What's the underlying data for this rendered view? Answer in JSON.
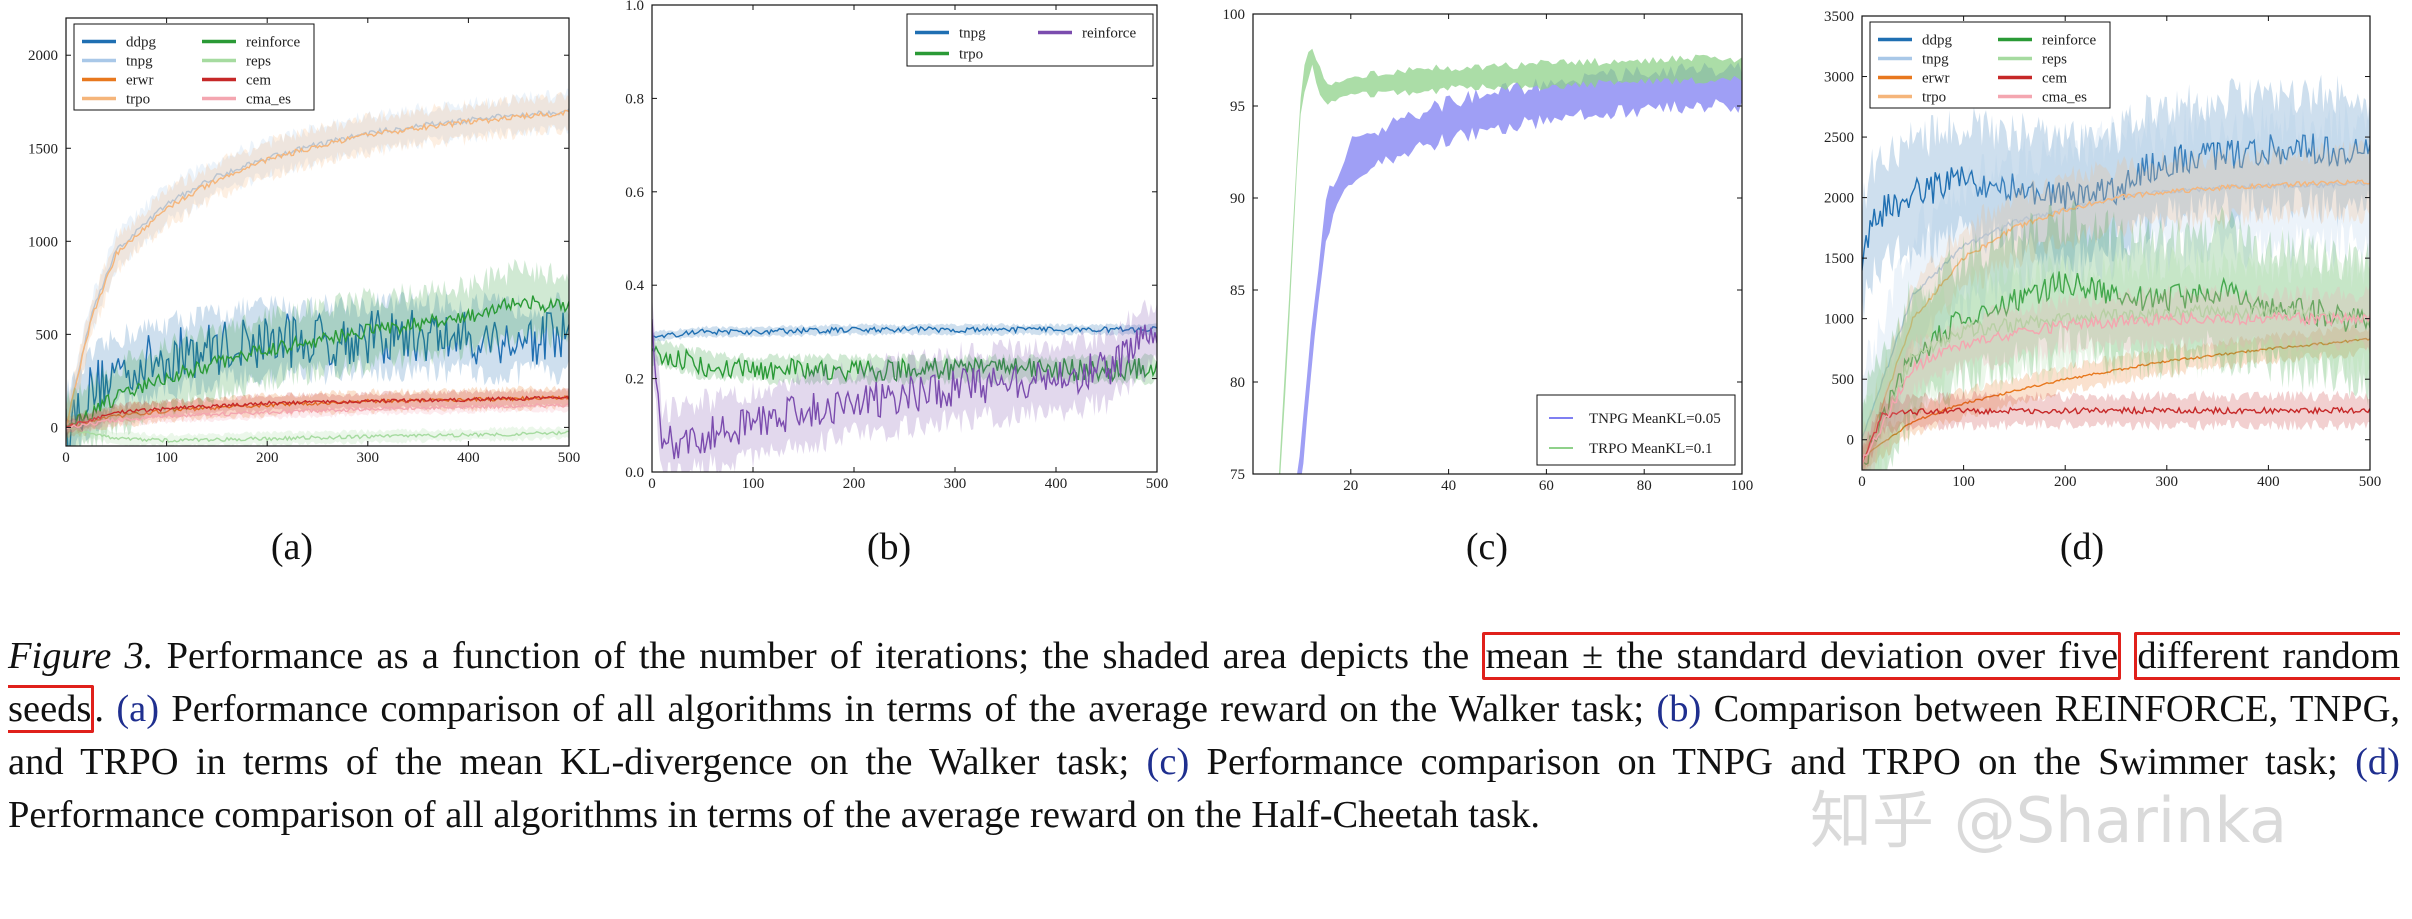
{
  "chart_data": [
    {
      "type": "line",
      "panel_label": "(a)",
      "xlim": [
        0,
        500
      ],
      "ylim": [
        -100,
        2200
      ],
      "xticks": [
        0,
        100,
        200,
        300,
        400,
        500
      ],
      "yticks": [
        0,
        500,
        1000,
        1500,
        2000
      ],
      "legend_position": "top-left",
      "legend_columns": 2,
      "series": [
        {
          "name": "ddpg",
          "color": "#1f6fb2",
          "x": [
            0,
            25,
            50,
            100,
            150,
            200,
            250,
            300,
            350,
            400,
            450,
            500
          ],
          "y": [
            0,
            200,
            300,
            380,
            430,
            470,
            470,
            480,
            490,
            480,
            470,
            480
          ],
          "spread": 180,
          "noise": 150
        },
        {
          "name": "tnpg",
          "color": "#a9c8e8",
          "x": [
            0,
            25,
            50,
            100,
            150,
            200,
            250,
            300,
            350,
            400,
            450,
            500
          ],
          "y": [
            0,
            600,
            950,
            1200,
            1350,
            1450,
            1520,
            1580,
            1620,
            1650,
            1680,
            1700
          ],
          "spread": 90,
          "noise": 15
        },
        {
          "name": "erwr",
          "color": "#e8781e",
          "x": [
            0,
            50,
            100,
            200,
            300,
            400,
            500
          ],
          "y": [
            0,
            60,
            90,
            120,
            140,
            150,
            160
          ],
          "spread": 50,
          "noise": 10
        },
        {
          "name": "trpo",
          "color": "#f5b57a",
          "x": [
            0,
            25,
            50,
            100,
            150,
            200,
            250,
            300,
            350,
            400,
            450,
            500
          ],
          "y": [
            0,
            580,
            930,
            1180,
            1330,
            1440,
            1510,
            1570,
            1610,
            1640,
            1670,
            1690
          ],
          "spread": 90,
          "noise": 15
        },
        {
          "name": "reinforce",
          "color": "#2a9a36",
          "x": [
            0,
            50,
            100,
            200,
            300,
            400,
            450,
            500
          ],
          "y": [
            0,
            160,
            270,
            420,
            520,
            590,
            680,
            640
          ],
          "spread": 170,
          "noise": 40
        },
        {
          "name": "reps",
          "color": "#a6dba0",
          "x": [
            0,
            50,
            100,
            200,
            300,
            400,
            500
          ],
          "y": [
            0,
            -60,
            -70,
            -60,
            -50,
            -40,
            -30
          ],
          "spread": 30,
          "noise": 10
        },
        {
          "name": "cem",
          "color": "#c62828",
          "x": [
            0,
            50,
            100,
            200,
            300,
            400,
            500
          ],
          "y": [
            0,
            80,
            100,
            130,
            140,
            150,
            160
          ],
          "spread": 40,
          "noise": 10
        },
        {
          "name": "cma_es",
          "color": "#f4a6b0",
          "x": [
            0,
            50,
            100,
            200,
            300,
            400,
            500
          ],
          "y": [
            0,
            40,
            60,
            80,
            100,
            110,
            120
          ],
          "spread": 30,
          "noise": 10
        }
      ]
    },
    {
      "type": "line",
      "panel_label": "(b)",
      "xlim": [
        0,
        500
      ],
      "ylim": [
        0,
        1.0
      ],
      "xticks": [
        0,
        100,
        200,
        300,
        400,
        500
      ],
      "yticks": [
        0.0,
        0.2,
        0.4,
        0.6,
        0.8,
        1.0
      ],
      "ytick_labels": [
        "0.0",
        "0.2",
        "0.4",
        "0.6",
        "0.8",
        "1.0"
      ],
      "legend_position": "top-right",
      "legend_columns": 2,
      "series": [
        {
          "name": "tnpg",
          "color": "#1f6fb2",
          "x": [
            0,
            50,
            100,
            200,
            300,
            400,
            500
          ],
          "y": [
            0.29,
            0.3,
            0.3,
            0.305,
            0.305,
            0.305,
            0.305
          ],
          "spread": 0.01,
          "noise": 0.006
        },
        {
          "name": "trpo",
          "color": "#2a9a36",
          "x": [
            0,
            50,
            100,
            200,
            300,
            400,
            500
          ],
          "y": [
            0.26,
            0.23,
            0.22,
            0.22,
            0.22,
            0.22,
            0.22
          ],
          "spread": 0.025,
          "noise": 0.025
        },
        {
          "name": "reinforce",
          "color": "#7b4cae",
          "x": [
            0,
            10,
            50,
            100,
            150,
            200,
            300,
            400,
            450,
            500
          ],
          "y": [
            0.3,
            0.06,
            0.08,
            0.1,
            0.13,
            0.15,
            0.18,
            0.2,
            0.22,
            0.3
          ],
          "spread": 0.07,
          "noise": 0.04
        }
      ]
    },
    {
      "type": "area",
      "panel_label": "(c)",
      "xlim": [
        0,
        100
      ],
      "ylim": [
        75,
        100
      ],
      "xticks": [
        20,
        40,
        60,
        80,
        100
      ],
      "yticks": [
        75,
        80,
        85,
        90,
        95,
        100
      ],
      "legend_position": "bottom-right",
      "legend_columns": 1,
      "series": [
        {
          "name": "TNPG MeanKL=0.05",
          "color": "#7f7ff2",
          "x": [
            8,
            10,
            12,
            15,
            20,
            30,
            40,
            50,
            60,
            70,
            80,
            90,
            100
          ],
          "y": [
            72,
            76,
            82,
            89,
            92,
            93.3,
            94.2,
            94.8,
            95.2,
            95.6,
            95.8,
            96.0,
            96.0
          ],
          "spread": 1.0,
          "noise": 0.25
        },
        {
          "name": "TRPO MeanKL=0.1",
          "color": "#8fd18a",
          "x": [
            5,
            7,
            9,
            10,
            12,
            13,
            15,
            20,
            30,
            40,
            50,
            60,
            70,
            80,
            90,
            100
          ],
          "y": [
            73,
            82,
            92,
            96,
            97.8,
            96.8,
            95.6,
            96.1,
            96.3,
            96.5,
            96.6,
            96.7,
            96.8,
            96.9,
            97.0,
            97.0
          ],
          "spread": 0.6,
          "noise": 0.2
        }
      ]
    },
    {
      "type": "line",
      "panel_label": "(d)",
      "xlim": [
        0,
        500
      ],
      "ylim": [
        -250,
        3500
      ],
      "xticks": [
        0,
        100,
        200,
        300,
        400,
        500
      ],
      "yticks": [
        0,
        500,
        1000,
        1500,
        2000,
        2500,
        3000,
        3500
      ],
      "legend_position": "top-left",
      "legend_columns": 2,
      "series": [
        {
          "name": "ddpg",
          "color": "#1f6fb2",
          "x": [
            0,
            10,
            30,
            60,
            100,
            150,
            200,
            250,
            270,
            300,
            350,
            400,
            450,
            500
          ],
          "y": [
            1500,
            1800,
            1950,
            2050,
            2150,
            2100,
            2000,
            2050,
            2200,
            2300,
            2350,
            2400,
            2400,
            2350
          ],
          "spread": 450,
          "noise": 130
        },
        {
          "name": "tnpg",
          "color": "#a9c8e8",
          "x": [
            0,
            50,
            100,
            150,
            200,
            250,
            300,
            350,
            400,
            450,
            500
          ],
          "y": [
            0,
            1200,
            1600,
            1800,
            1900,
            2000,
            2050,
            2080,
            2100,
            2100,
            2120
          ],
          "spread": 500,
          "noise": 20
        },
        {
          "name": "erwr",
          "color": "#e8781e",
          "x": [
            0,
            50,
            100,
            150,
            200,
            300,
            400,
            500
          ],
          "y": [
            -150,
            150,
            300,
            400,
            500,
            650,
            750,
            830
          ],
          "spread": 100,
          "noise": 10
        },
        {
          "name": "trpo",
          "color": "#f5b57a",
          "x": [
            0,
            50,
            100,
            150,
            200,
            250,
            300,
            350,
            400,
            450,
            500
          ],
          "y": [
            -200,
            1000,
            1500,
            1750,
            1900,
            2000,
            2050,
            2080,
            2100,
            2120,
            2130
          ],
          "spread": 250,
          "noise": 20
        },
        {
          "name": "reinforce",
          "color": "#2a9a36",
          "x": [
            0,
            50,
            100,
            150,
            200,
            250,
            300,
            350,
            400,
            450,
            500
          ],
          "y": [
            -200,
            700,
            1000,
            1150,
            1300,
            1200,
            1150,
            1250,
            1100,
            1050,
            950
          ],
          "spread": 500,
          "noise": 110
        },
        {
          "name": "reps",
          "color": "#a6dba0",
          "x": [
            0,
            50,
            100,
            200,
            300,
            400,
            500
          ],
          "y": [
            -200,
            700,
            900,
            1000,
            1050,
            1050,
            1000
          ],
          "spread": 400,
          "noise": 60
        },
        {
          "name": "cem",
          "color": "#c62828",
          "x": [
            0,
            20,
            50,
            100,
            200,
            300,
            400,
            500
          ],
          "y": [
            -200,
            200,
            230,
            240,
            240,
            240,
            240,
            240
          ],
          "spread": 120,
          "noise": 25
        },
        {
          "name": "cma_es",
          "color": "#f4a6b0",
          "x": [
            0,
            50,
            100,
            200,
            300,
            400,
            500
          ],
          "y": [
            -200,
            600,
            800,
            950,
            1000,
            1000,
            1000
          ],
          "spread": 200,
          "noise": 50
        }
      ]
    }
  ],
  "caption": {
    "figure_label": "Figure 3.",
    "text_before_highlight": " Performance as a function of the number of iterations; the shaded area depicts the ",
    "highlight_1": "mean ± the standard deviation over five",
    "highlight_2": "different random seeds",
    "text_after_highlight": ". ",
    "ref_a": "(a)",
    "text_a": " Performance comparison of all algorithms in terms of the average reward on the Walker task; ",
    "ref_b": "(b)",
    "text_b": " Comparison between REINFORCE, TNPG, and TRPO in terms of the mean KL-divergence on the Walker task; ",
    "ref_c": "(c)",
    "text_c": " Performance comparison on TNPG and TRPO on the Swimmer task; ",
    "ref_d": "(d)",
    "text_d": " Performance comparison of all algorithms in terms of the average reward on the Half-Cheetah task."
  },
  "watermark": "知乎 @Sharinka"
}
